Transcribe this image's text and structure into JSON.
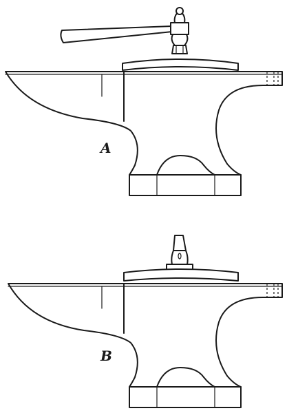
{
  "figures": [
    {
      "label": "A"
    },
    {
      "label": "B"
    }
  ]
}
